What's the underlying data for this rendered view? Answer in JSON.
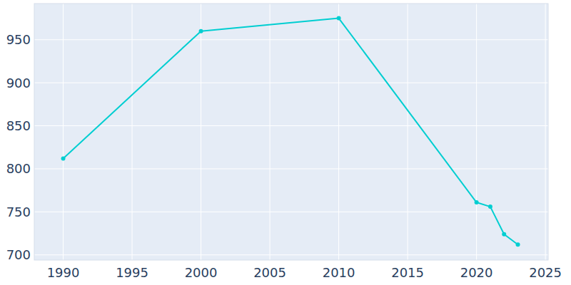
{
  "chart_data": {
    "type": "line",
    "x": [
      1990,
      2000,
      2010,
      2020,
      2021,
      2022,
      2023
    ],
    "values": [
      812,
      960,
      975,
      761,
      756,
      724,
      712
    ],
    "color": "#00ced1",
    "marker": "circle",
    "xlim": [
      1987.9,
      2025.2
    ],
    "xticks": [
      1990,
      1995,
      2000,
      2005,
      2010,
      2015,
      2020,
      2025
    ],
    "ylim": [
      694,
      992
    ],
    "yticks": [
      700,
      750,
      800,
      850,
      900,
      950
    ],
    "grid": true
  }
}
